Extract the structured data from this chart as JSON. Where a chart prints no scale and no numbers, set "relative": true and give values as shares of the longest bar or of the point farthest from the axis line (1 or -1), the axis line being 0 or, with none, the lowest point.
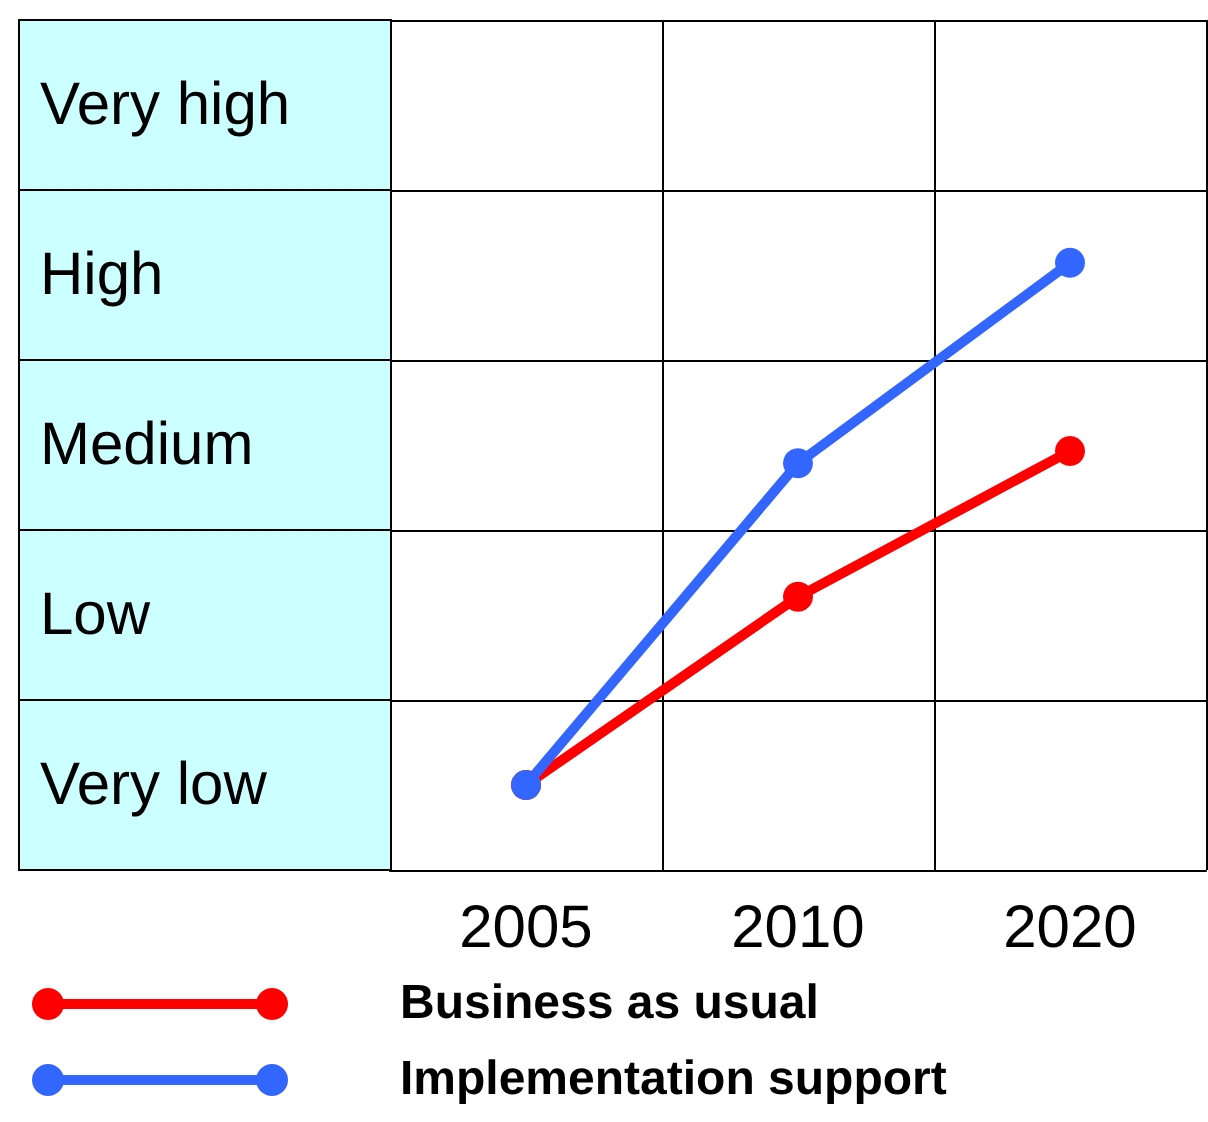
{
  "chart_data": {
    "type": "line",
    "relative": true,
    "categories": [
      "2005",
      "2010",
      "2020"
    ],
    "y_categories": [
      "Very high",
      "High",
      "Medium",
      "Low",
      "Very low"
    ],
    "series": [
      {
        "name": "Business as usual",
        "color": "#ff0000",
        "values": [
          0.14,
          0.45,
          0.69
        ]
      },
      {
        "name": "Implementation support",
        "color": "#3366ff",
        "values": [
          0.14,
          0.67,
          1
        ]
      }
    ],
    "grid": true,
    "legend": "bottom left",
    "marker": "circle",
    "line_style": "solid"
  }
}
